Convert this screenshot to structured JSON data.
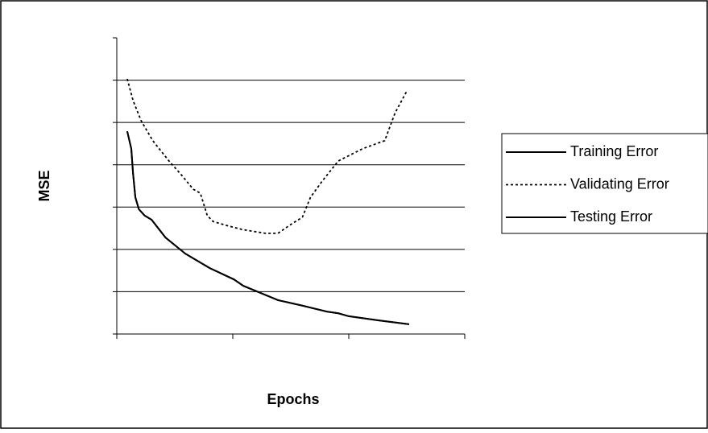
{
  "chart_data": {
    "type": "line",
    "xlabel": "Epochs",
    "ylabel": "MSE",
    "xlim": [
      0,
      3
    ],
    "xticks": [
      0,
      1,
      2,
      3
    ],
    "ylim": [
      0,
      7
    ],
    "yticks": [
      0,
      1,
      2,
      3,
      4,
      5,
      6,
      7
    ],
    "grid": true,
    "legend": "right",
    "series": [
      {
        "name": "Training Error",
        "color": "#000000",
        "dash": "solid",
        "x": [
          0.09,
          0.125,
          0.14,
          0.16,
          0.19,
          0.24,
          0.3,
          0.42,
          0.59,
          0.8,
          1.01,
          1.09,
          1.39,
          1.6,
          1.81,
          1.91,
          2.0,
          2.26,
          2.52
        ],
        "values": [
          4.79,
          4.38,
          3.8,
          3.23,
          2.95,
          2.8,
          2.7,
          2.28,
          1.9,
          1.56,
          1.29,
          1.14,
          0.8,
          0.67,
          0.53,
          0.49,
          0.42,
          0.32,
          0.23
        ]
      },
      {
        "name": "Validating Error",
        "color": "#000000",
        "dash": "dotted",
        "x": [
          0.09,
          0.14,
          0.21,
          0.31,
          0.45,
          0.56,
          0.66,
          0.72,
          0.78,
          0.83,
          0.94,
          1.08,
          1.28,
          1.39,
          1.49,
          1.6,
          1.67,
          1.77,
          1.91,
          2.12,
          2.31,
          2.4,
          2.5
        ],
        "values": [
          6.03,
          5.52,
          5.04,
          4.57,
          4.09,
          3.75,
          3.42,
          3.33,
          2.8,
          2.66,
          2.57,
          2.47,
          2.38,
          2.38,
          2.57,
          2.76,
          3.23,
          3.61,
          4.09,
          4.38,
          4.57,
          5.23,
          5.74
        ]
      },
      {
        "name": "Testing Error",
        "color": "#000000",
        "dash": "solid",
        "x": [
          0.09,
          0.125,
          0.14,
          0.16,
          0.19,
          0.24,
          0.3,
          0.42,
          0.59,
          0.8,
          1.01,
          1.09,
          1.39,
          1.6,
          1.81,
          1.91,
          2.0,
          2.26,
          2.52
        ],
        "values": [
          4.79,
          4.38,
          3.8,
          3.23,
          2.95,
          2.8,
          2.7,
          2.28,
          1.9,
          1.56,
          1.29,
          1.14,
          0.8,
          0.67,
          0.53,
          0.49,
          0.42,
          0.32,
          0.23
        ]
      }
    ]
  }
}
